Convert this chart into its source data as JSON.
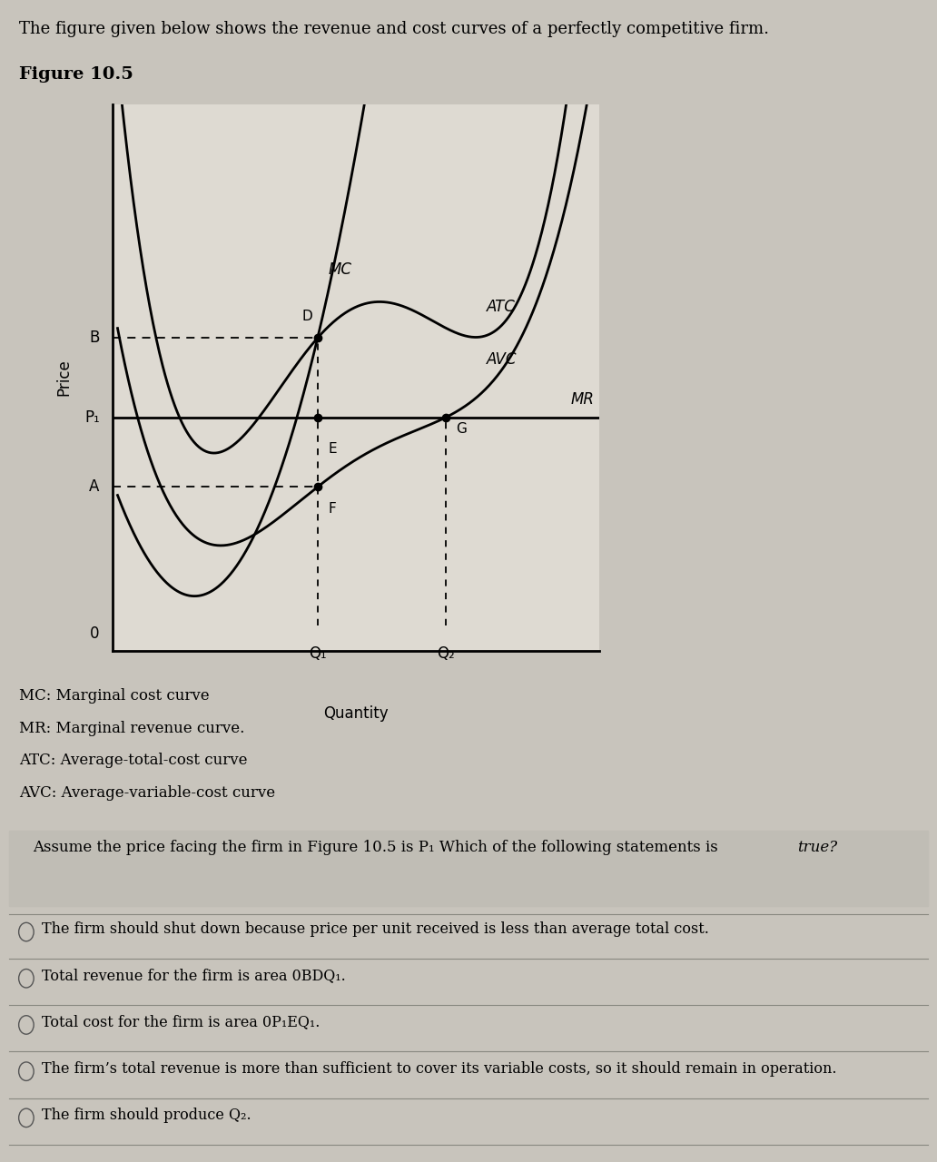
{
  "title_text": "The figure given below shows the revenue and cost curves of a perfectly competitive firm.",
  "figure_label": "Figure 10.5",
  "ylabel": "Price",
  "xlabel": "Quantity",
  "bg_color": "#c8c4bc",
  "chart_bg": "#dedad2",
  "legend_lines": [
    "MC: Marginal cost curve",
    "MR: Marginal revenue curve.",
    "ATC: Average-total-cost curve",
    "AVC: Average-variable-cost curve"
  ],
  "question_text": "Assume the price facing the firm in Figure 10.5 is P₁ Which of the following statements is ",
  "question_italic": "true?",
  "options": [
    "The firm should shut down because price per unit received is less than average total cost.",
    "Total revenue for the firm is area 0BDQ₁.",
    "Total cost for the firm is area 0P₁EQ₁.",
    "The firm’s total revenue is more than sufficient to cover its variable costs, so it should remain in operation.",
    "The firm should produce Q₂."
  ],
  "P1": 0.42,
  "B": 0.58,
  "A": 0.28,
  "Q1": 0.4,
  "Q2": 0.65,
  "xlim_max": 0.95,
  "ylim_max": 1.05,
  "ylim_min": -0.05
}
